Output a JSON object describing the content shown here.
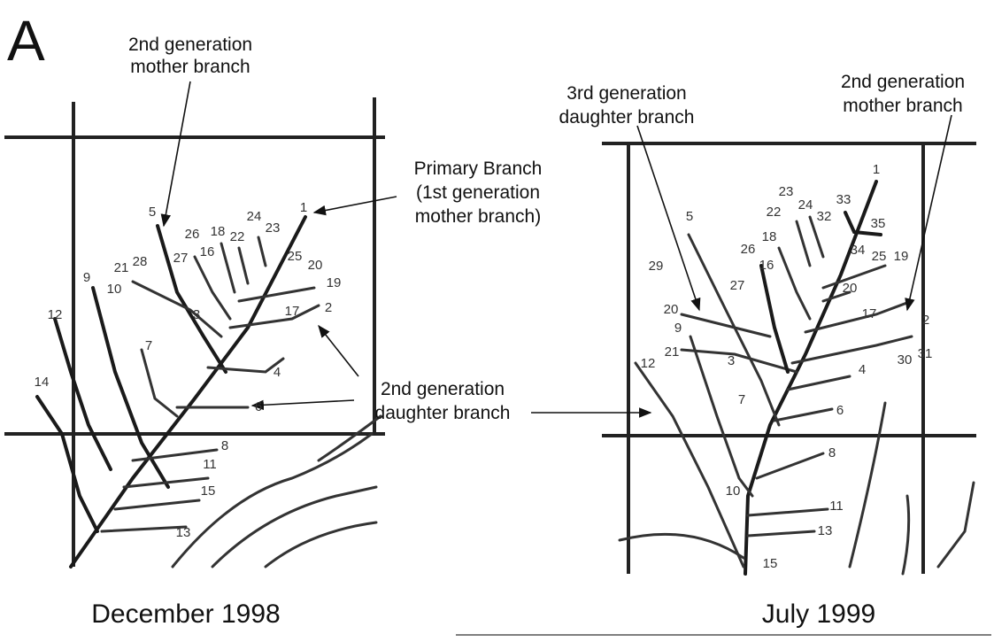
{
  "panel_label": "A",
  "daughter_branch_label": [
    "2nd generation",
    "daughter branch"
  ],
  "left": {
    "caption": "December 1998",
    "mother_branch_label": [
      "2nd generation",
      "mother branch"
    ],
    "primary_branch_label": [
      "Primary Branch",
      "(1st generation",
      "mother branch)"
    ],
    "branch_labels": [
      "1",
      "5",
      "26",
      "18",
      "22",
      "24",
      "23",
      "25",
      "20",
      "19",
      "2",
      "17",
      "4",
      "6",
      "9",
      "21",
      "28",
      "27",
      "16",
      "3",
      "10",
      "12",
      "7",
      "14",
      "8",
      "11",
      "15",
      "13"
    ]
  },
  "right": {
    "caption": "July 1999",
    "daughter3_label": [
      "3rd generation",
      "daughter branch"
    ],
    "mother_branch_label": [
      "2nd generation",
      "mother branch"
    ],
    "branch_labels": [
      "1",
      "33",
      "35",
      "23",
      "22",
      "24",
      "32",
      "34",
      "25",
      "19",
      "5",
      "29",
      "26",
      "18",
      "16",
      "20",
      "27",
      "17",
      "2",
      "20",
      "9",
      "21",
      "3",
      "30",
      "31",
      "4",
      "7",
      "6",
      "12",
      "8",
      "10",
      "11",
      "13",
      "15"
    ]
  }
}
